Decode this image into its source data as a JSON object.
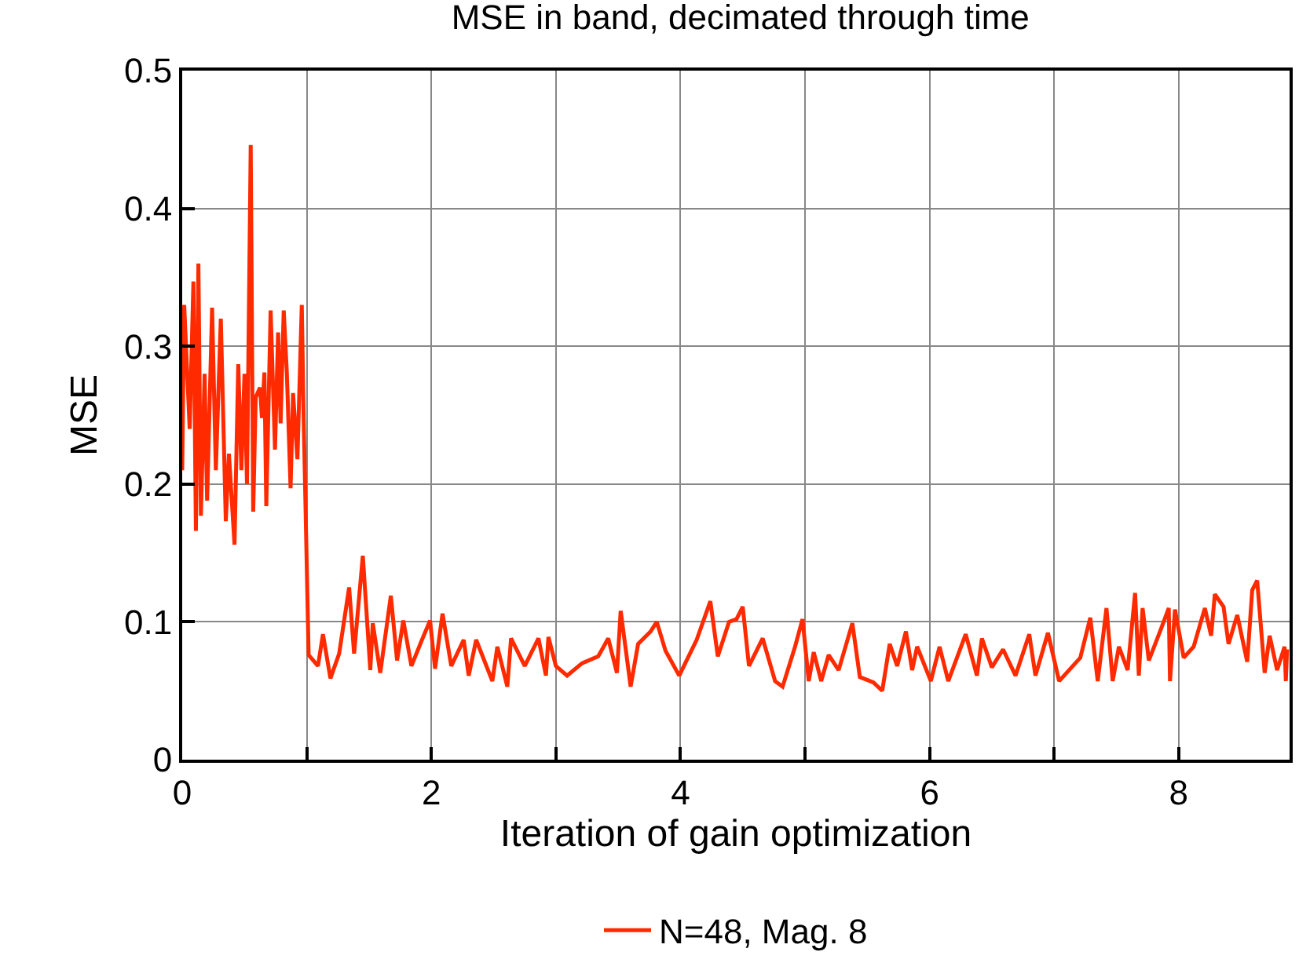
{
  "chart_data": {
    "type": "line",
    "title": "MSE in band, decimated through time",
    "xlabel": "Iteration of gain optimization",
    "ylabel": "MSE",
    "xlim": [
      0,
      8.89
    ],
    "ylim": [
      0,
      0.5
    ],
    "xticks": [
      0,
      {
        "value": 1,
        "label": null
      },
      2,
      {
        "value": 3,
        "label": null
      },
      4,
      {
        "value": 5,
        "label": null
      },
      6,
      {
        "value": 7,
        "label": null
      },
      8
    ],
    "yticks": [
      0,
      0.1,
      0.2,
      0.3,
      0.4,
      0.5
    ],
    "grid": true,
    "legend": "bottom",
    "marker": "none",
    "line_style": "solid",
    "series": [
      {
        "name": "N=48, Mag. 8",
        "color": "#ff2a00",
        "x": [
          0,
          0.016,
          0.06,
          0.09,
          0.11,
          0.13,
          0.15,
          0.18,
          0.2,
          0.24,
          0.27,
          0.31,
          0.35,
          0.375,
          0.42,
          0.45,
          0.475,
          0.5,
          0.52,
          0.55,
          0.57,
          0.59,
          0.625,
          0.64,
          0.66,
          0.675,
          0.71,
          0.745,
          0.77,
          0.79,
          0.815,
          0.84,
          0.87,
          0.89,
          0.925,
          0.96,
          0.975,
          1.015,
          1.09,
          1.13,
          1.19,
          1.26,
          1.34,
          1.38,
          1.45,
          1.51,
          1.53,
          1.59,
          1.675,
          1.725,
          1.775,
          1.84,
          1.925,
          1.99,
          2.03,
          2.09,
          2.16,
          2.26,
          2.3,
          2.36,
          2.49,
          2.53,
          2.61,
          2.64,
          2.75,
          2.86,
          2.92,
          2.94,
          3.0,
          3.09,
          3.21,
          3.34,
          3.42,
          3.49,
          3.52,
          3.6,
          3.66,
          3.76,
          3.81,
          3.88,
          3.99,
          4.13,
          4.24,
          4.3,
          4.39,
          4.45,
          4.5,
          4.55,
          4.66,
          4.76,
          4.82,
          4.92,
          4.98,
          5.03,
          5.07,
          5.13,
          5.19,
          5.27,
          5.38,
          5.44,
          5.55,
          5.62,
          5.68,
          5.74,
          5.81,
          5.86,
          5.9,
          6.01,
          6.08,
          6.15,
          6.29,
          6.38,
          6.42,
          6.5,
          6.59,
          6.69,
          6.8,
          6.85,
          6.95,
          7.04,
          7.21,
          7.29,
          7.35,
          7.42,
          7.47,
          7.52,
          7.59,
          7.65,
          7.68,
          7.71,
          7.76,
          7.85,
          7.92,
          7.93,
          7.97,
          8.04,
          8.12,
          8.21,
          8.26,
          8.29,
          8.36,
          8.4,
          8.47,
          8.55,
          8.59,
          8.63,
          8.69,
          8.73,
          8.79,
          8.85,
          8.86,
          8.87
        ],
        "values": [
          0.21,
          0.33,
          0.24,
          0.347,
          0.166,
          0.36,
          0.177,
          0.28,
          0.188,
          0.328,
          0.21,
          0.32,
          0.173,
          0.222,
          0.156,
          0.287,
          0.21,
          0.28,
          0.2,
          0.446,
          0.18,
          0.263,
          0.27,
          0.248,
          0.281,
          0.184,
          0.326,
          0.225,
          0.31,
          0.244,
          0.326,
          0.281,
          0.197,
          0.266,
          0.218,
          0.33,
          0.248,
          0.076,
          0.068,
          0.091,
          0.059,
          0.077,
          0.125,
          0.077,
          0.148,
          0.065,
          0.099,
          0.063,
          0.119,
          0.072,
          0.101,
          0.068,
          0.087,
          0.101,
          0.066,
          0.106,
          0.068,
          0.087,
          0.061,
          0.087,
          0.057,
          0.082,
          0.053,
          0.088,
          0.068,
          0.088,
          0.061,
          0.089,
          0.068,
          0.061,
          0.07,
          0.075,
          0.088,
          0.063,
          0.108,
          0.053,
          0.084,
          0.093,
          0.1,
          0.079,
          0.061,
          0.087,
          0.115,
          0.075,
          0.1,
          0.102,
          0.111,
          0.068,
          0.088,
          0.057,
          0.053,
          0.082,
          0.102,
          0.057,
          0.078,
          0.057,
          0.076,
          0.065,
          0.099,
          0.06,
          0.056,
          0.05,
          0.084,
          0.068,
          0.093,
          0.065,
          0.082,
          0.057,
          0.082,
          0.057,
          0.091,
          0.061,
          0.088,
          0.067,
          0.08,
          0.061,
          0.091,
          0.061,
          0.092,
          0.057,
          0.074,
          0.103,
          0.057,
          0.11,
          0.057,
          0.082,
          0.065,
          0.121,
          0.061,
          0.11,
          0.072,
          0.093,
          0.11,
          0.057,
          0.109,
          0.074,
          0.082,
          0.11,
          0.09,
          0.12,
          0.111,
          0.084,
          0.105,
          0.071,
          0.123,
          0.13,
          0.063,
          0.09,
          0.065,
          0.082,
          0.057,
          0.08
        ]
      }
    ]
  }
}
